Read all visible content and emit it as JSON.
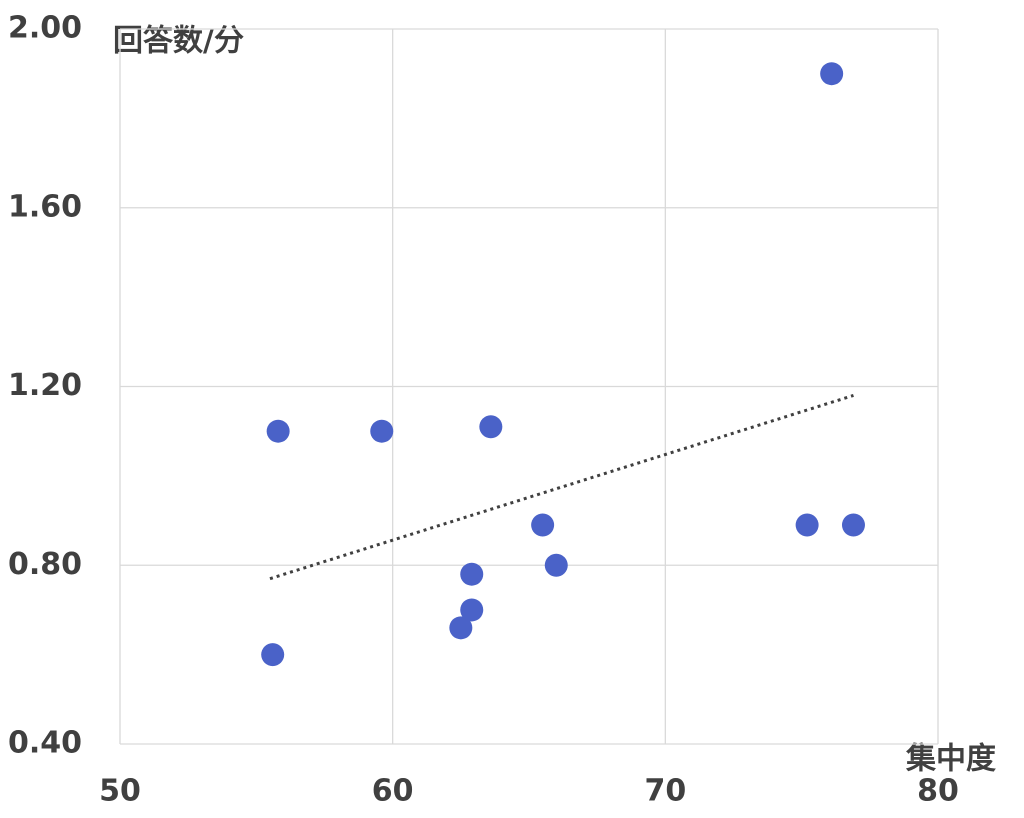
{
  "chart_data": {
    "type": "scatter",
    "x_label": "集中度",
    "y_label": "回答数/分",
    "x": [
      55.8,
      59.6,
      63.6,
      65.5,
      66.0,
      62.9,
      62.9,
      62.5,
      55.6,
      76.1,
      75.2,
      76.9
    ],
    "values": [
      1.1,
      1.1,
      1.11,
      0.89,
      0.8,
      0.78,
      0.7,
      0.66,
      0.6,
      1.9,
      0.89,
      0.89
    ],
    "color": "#4a62c8",
    "trendline": {
      "x": [
        55.5,
        76.9
      ],
      "values": [
        0.77,
        1.18
      ],
      "color": "#404040"
    },
    "xlim": [
      50,
      80
    ],
    "xticks": [
      50,
      60,
      70,
      80
    ],
    "ylim": [
      0.4,
      2.0
    ],
    "yticks": [
      {
        "value": 0.4,
        "label": "0.40"
      },
      {
        "value": 0.8,
        "label": "0.80"
      },
      {
        "value": 1.2,
        "label": "1.20"
      },
      {
        "value": 1.6,
        "label": "1.60"
      },
      {
        "value": 2.0,
        "label": "2.00"
      }
    ],
    "grid": true
  }
}
